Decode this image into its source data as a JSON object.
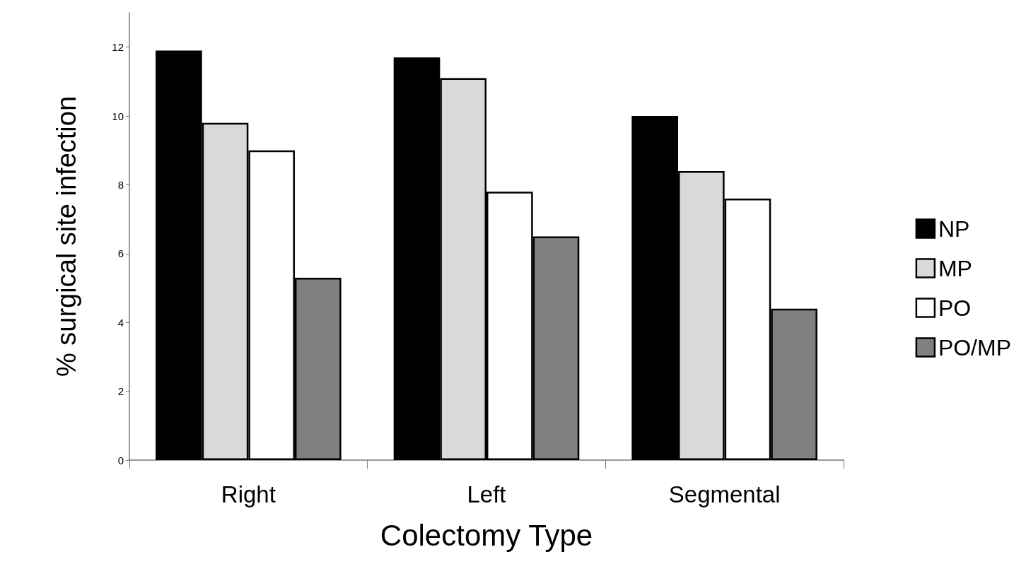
{
  "chart_data": {
    "type": "bar",
    "xlabel": "Colectomy Type",
    "ylabel": "% surgical site infection",
    "categories": [
      "Right",
      "Left",
      "Segmental"
    ],
    "series": [
      {
        "name": "NP",
        "color": "#000000",
        "values": [
          11.9,
          11.7,
          10.0
        ]
      },
      {
        "name": "MP",
        "color": "#d9d9d9",
        "values": [
          9.8,
          11.1,
          8.4
        ]
      },
      {
        "name": "PO",
        "color": "#ffffff",
        "values": [
          9.0,
          7.8,
          7.6
        ]
      },
      {
        "name": "PO/MP",
        "color": "#808080",
        "values": [
          5.3,
          6.5,
          4.4
        ]
      }
    ],
    "ylim": [
      0,
      13
    ],
    "yticks": [
      0,
      2,
      4,
      6,
      8,
      10,
      12
    ],
    "grid": false,
    "legend": "right"
  }
}
